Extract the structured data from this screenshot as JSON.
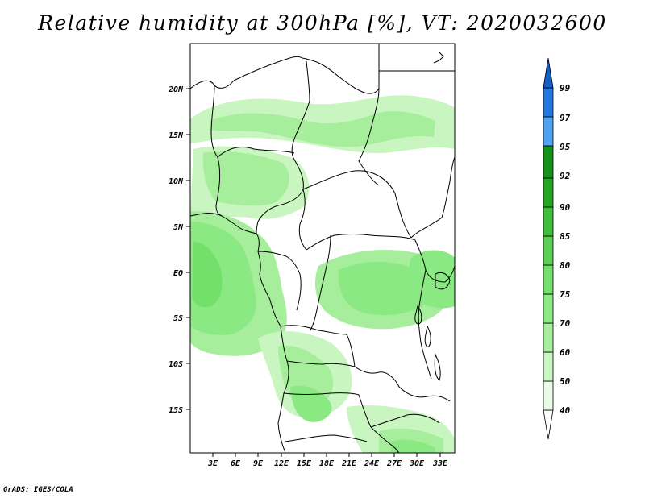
{
  "title": "Relative humidity at 300hPa [%], VT: 2020032600",
  "credit": "GrADS: IGES/COLA",
  "map": {
    "lat_labels": [
      "20N",
      "15N",
      "10N",
      "5N",
      "EQ",
      "5S",
      "10S",
      "15S"
    ],
    "lon_labels": [
      "3E",
      "6E",
      "9E",
      "12E",
      "15E",
      "18E",
      "21E",
      "24E",
      "27E",
      "30E",
      "33E"
    ]
  },
  "colorbar": {
    "levels": [
      "40",
      "50",
      "60",
      "70",
      "75",
      "80",
      "85",
      "90",
      "92",
      "95",
      "97",
      "99"
    ],
    "colors": {
      "40-50": "#e8fbe4",
      "50-60": "#c8f5c0",
      "60-70": "#a6ee9c",
      "70-75": "#8ae982",
      "75-80": "#72e06a",
      "80-85": "#5bd055",
      "85-90": "#3fbf3c",
      "90-92": "#24a524",
      "92-95": "#14921a",
      "95-97": "#4fa3f2",
      "97-99": "#2277e0",
      "99+": "#1160c8"
    }
  }
}
